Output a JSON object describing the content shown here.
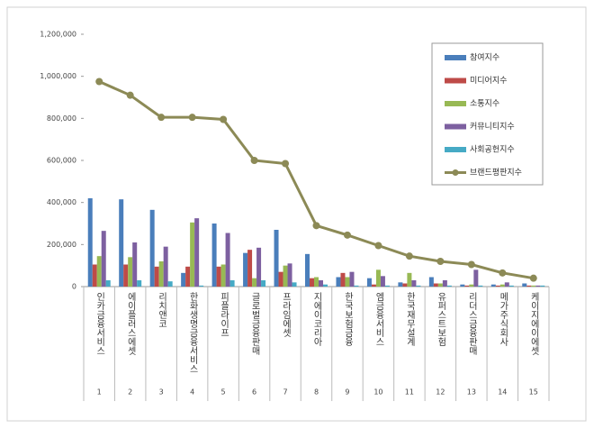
{
  "chart_data": {
    "type": "bar-line",
    "categories": [
      "인카금융서비스",
      "에이플러스에셋",
      "리치앤코",
      "한화생명금융서비스",
      "피플라이프",
      "글로벌금융판매",
      "프라임에셋",
      "지에이코리아",
      "한국보험금융",
      "엠금융서비스",
      "한국재무설계",
      "유퍼스트보험",
      "리더스금융판매",
      "메가주식회사",
      "케이지에이에셋"
    ],
    "category_index": [
      1,
      2,
      3,
      4,
      5,
      6,
      7,
      8,
      9,
      10,
      11,
      12,
      13,
      14,
      15
    ],
    "series": [
      {
        "name": "참여지수",
        "color": "#4a7ebb",
        "kind": "bar",
        "values": [
          420000,
          415000,
          365000,
          65000,
          300000,
          160000,
          270000,
          155000,
          45000,
          40000,
          20000,
          45000,
          10000,
          10000,
          15000
        ]
      },
      {
        "name": "미디어지수",
        "color": "#be4b48",
        "kind": "bar",
        "values": [
          105000,
          105000,
          95000,
          95000,
          95000,
          175000,
          70000,
          40000,
          65000,
          10000,
          15000,
          15000,
          5000,
          5000,
          5000
        ]
      },
      {
        "name": "소통지수",
        "color": "#98b954",
        "kind": "bar",
        "values": [
          145000,
          140000,
          120000,
          305000,
          105000,
          40000,
          100000,
          45000,
          45000,
          80000,
          65000,
          15000,
          10000,
          10000,
          5000
        ]
      },
      {
        "name": "커뮤니티지수",
        "color": "#7d60a0",
        "kind": "bar",
        "values": [
          265000,
          210000,
          190000,
          325000,
          255000,
          185000,
          110000,
          30000,
          70000,
          50000,
          30000,
          30000,
          80000,
          20000,
          5000
        ]
      },
      {
        "name": "사회공헌지수",
        "color": "#46aac5",
        "kind": "bar",
        "values": [
          30000,
          30000,
          25000,
          5000,
          30000,
          30000,
          20000,
          10000,
          5000,
          5000,
          5000,
          5000,
          5000,
          5000,
          5000
        ]
      },
      {
        "name": "브랜드평판지수",
        "color": "#8c8a56",
        "kind": "line",
        "values": [
          975000,
          910000,
          805000,
          805000,
          795000,
          600000,
          585000,
          290000,
          245000,
          195000,
          145000,
          120000,
          105000,
          65000,
          40000
        ]
      }
    ],
    "ylim": [
      0,
      1200000
    ],
    "yticks": [
      0,
      {
        "value": 200000,
        "label": "200,000"
      },
      {
        "value": 400000,
        "label": "400,000"
      },
      {
        "value": 600000,
        "label": "600,000"
      },
      {
        "value": 800000,
        "label": "800,000"
      },
      {
        "value": 1000000,
        "label": "1,000,000"
      },
      {
        "value": 1200000,
        "label": "1,200,000"
      }
    ],
    "grid": false,
    "legend": "top-right"
  }
}
